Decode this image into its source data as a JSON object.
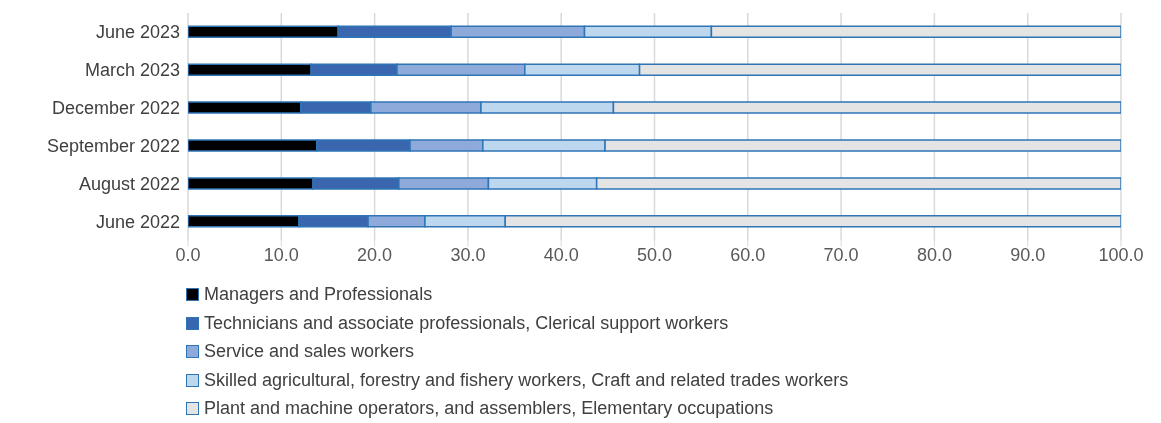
{
  "chart_data": {
    "type": "bar",
    "orientation": "horizontal",
    "stacked": true,
    "categories": [
      "June 2023",
      "March 2023",
      "December 2022",
      "September 2022",
      "August 2022",
      "June 2022"
    ],
    "series": [
      {
        "name": "Managers and Professionals",
        "color": "#000000",
        "values": [
          16.1,
          13.2,
          12.1,
          13.8,
          13.4,
          11.9
        ]
      },
      {
        "name": "Technicians and associate professionals, Clerical support workers",
        "color": "#3a66b0",
        "values": [
          12.1,
          9.2,
          7.5,
          10.0,
          9.2,
          7.4
        ]
      },
      {
        "name": "Service and sales workers",
        "color": "#8eaadb",
        "values": [
          14.3,
          13.7,
          11.8,
          7.8,
          9.6,
          6.1
        ]
      },
      {
        "name": "Skilled agricultural, forestry and fishery workers, Craft and related trades workers",
        "color": "#bdd7ee",
        "values": [
          13.6,
          12.3,
          14.2,
          13.1,
          11.6,
          8.6
        ]
      },
      {
        "name": "Plant and machine operators, and assemblers, Elementary occupations",
        "color": "#e4e4e4",
        "values": [
          43.9,
          51.6,
          54.4,
          55.3,
          56.2,
          66.0
        ]
      }
    ],
    "xlim": [
      0,
      100
    ],
    "xticks": [
      {
        "value": 0,
        "label": "0.0"
      },
      {
        "value": 10,
        "label": "10.0"
      },
      {
        "value": 20,
        "label": "20.0"
      },
      {
        "value": 30,
        "label": "30.0"
      },
      {
        "value": 40,
        "label": "40.0"
      },
      {
        "value": 50,
        "label": "50.0"
      },
      {
        "value": 60,
        "label": "60.0"
      },
      {
        "value": 70,
        "label": "70.0"
      },
      {
        "value": 80,
        "label": "80.0"
      },
      {
        "value": 90,
        "label": "90.0"
      },
      {
        "value": 100,
        "label": "100.0"
      }
    ],
    "grid": "x",
    "legend": "bottom"
  }
}
